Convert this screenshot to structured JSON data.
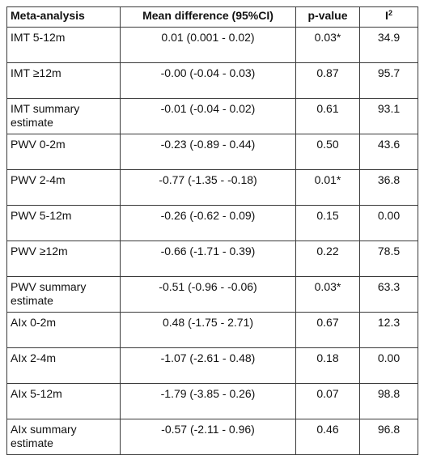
{
  "table": {
    "headers": {
      "meta_analysis": "Meta-analysis",
      "mean_difference": "Mean difference (95%CI)",
      "p_value": "p-value",
      "i2_base": "I",
      "i2_sup": "2"
    },
    "rows": [
      {
        "label": "IMT 5-12m",
        "mean_diff": "0.01 (0.001 - 0.02)",
        "p": "0.03*",
        "i2": "34.9"
      },
      {
        "label": "IMT ≥12m",
        "mean_diff": "-0.00 (-0.04 - 0.03)",
        "p": "0.87",
        "i2": "95.7"
      },
      {
        "label": "IMT summary estimate",
        "mean_diff": "-0.01 (-0.04 - 0.02)",
        "p": "0.61",
        "i2": "93.1"
      },
      {
        "label": "PWV 0-2m",
        "mean_diff": "-0.23 (-0.89 - 0.44)",
        "p": "0.50",
        "i2": "43.6"
      },
      {
        "label": "PWV 2-4m",
        "mean_diff": "-0.77 (-1.35 - -0.18)",
        "p": "0.01*",
        "i2": "36.8"
      },
      {
        "label": "PWV 5-12m",
        "mean_diff": "-0.26 (-0.62 - 0.09)",
        "p": "0.15",
        "i2": "0.00"
      },
      {
        "label": "PWV ≥12m",
        "mean_diff": "-0.66 (-1.71 - 0.39)",
        "p": "0.22",
        "i2": "78.5"
      },
      {
        "label": "PWV summary estimate",
        "mean_diff": "-0.51 (-0.96 - -0.06)",
        "p": "0.03*",
        "i2": "63.3"
      },
      {
        "label": "AIx 0-2m",
        "mean_diff": "0.48 (-1.75 - 2.71)",
        "p": "0.67",
        "i2": "12.3"
      },
      {
        "label": "AIx 2-4m",
        "mean_diff": "-1.07 (-2.61 - 0.48)",
        "p": "0.18",
        "i2": "0.00"
      },
      {
        "label": "AIx 5-12m",
        "mean_diff": "-1.79 (-3.85 - 0.26)",
        "p": "0.07",
        "i2": "98.8"
      },
      {
        "label": "AIx summary estimate",
        "mean_diff": "-0.57 (-2.11 - 0.96)",
        "p": "0.46",
        "i2": "96.8"
      }
    ]
  }
}
